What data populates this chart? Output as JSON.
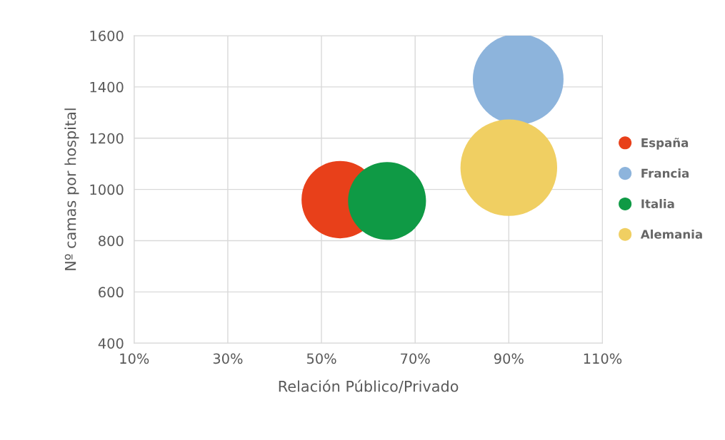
{
  "chart_data": {
    "type": "bubble",
    "xlabel": "Relación Público/Privado",
    "ylabel": "Nº camas por hospital",
    "series": [
      {
        "name": "España",
        "color": "#e8401a",
        "x": [
          0.54
        ],
        "values": [
          960
        ],
        "sizes": [
          0.64
        ]
      },
      {
        "name": "Francia",
        "color": "#8db4dc",
        "x": [
          0.92
        ],
        "values": [
          1430
        ],
        "sizes": [
          0.88
        ]
      },
      {
        "name": "Italia",
        "color": "#0f9a45",
        "x": [
          0.64
        ],
        "values": [
          955
        ],
        "sizes": [
          0.65
        ]
      },
      {
        "name": "Alemania",
        "color": "#f0cf62",
        "x": [
          0.9
        ],
        "values": [
          1085
        ],
        "sizes": [
          1
        ]
      }
    ],
    "xlim": [
      0.1,
      1.1
    ],
    "xticks": [
      {
        "value": 0.1,
        "label": "10%"
      },
      {
        "value": 0.3,
        "label": "30%"
      },
      {
        "value": 0.5,
        "label": "50%"
      },
      {
        "value": 0.7,
        "label": "70%"
      },
      {
        "value": 0.9,
        "label": "90%"
      },
      {
        "value": 1.1,
        "label": "110%"
      }
    ],
    "ylim": [
      400,
      1600
    ],
    "yticks": [
      400,
      600,
      800,
      1000,
      1200,
      1400,
      1600
    ],
    "grid": true,
    "legend": "right",
    "marker": "circle"
  }
}
